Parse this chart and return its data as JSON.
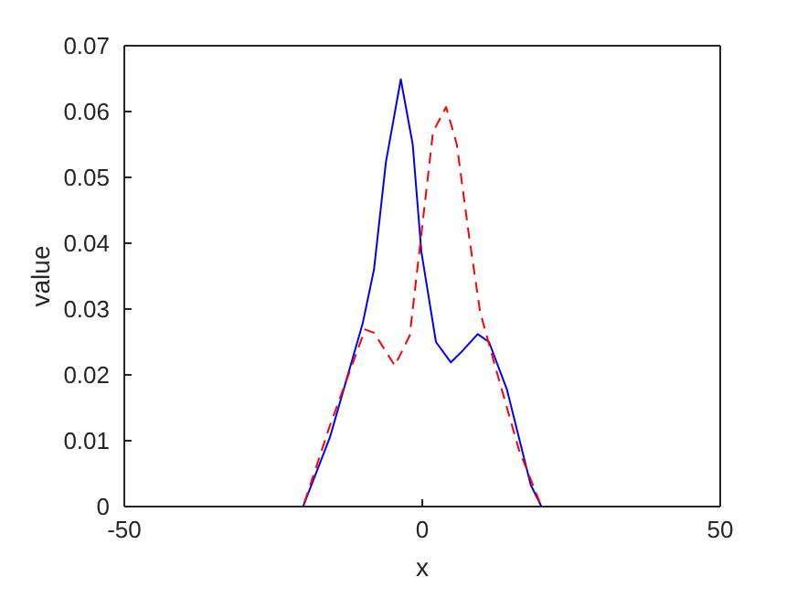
{
  "chart_data": {
    "type": "line",
    "xlabel": "x",
    "ylabel": "value",
    "xlim": [
      -50,
      50
    ],
    "xticks": [
      -50,
      0,
      50
    ],
    "ylim": [
      0,
      0.07
    ],
    "yticks": [
      0,
      0.01,
      0.02,
      0.03,
      0.04,
      0.05,
      0.06,
      0.07
    ],
    "grid": false,
    "marker": "none",
    "series": [
      {
        "color": "#0000ff",
        "line_style": "solid",
        "x": [
          -50,
          -20,
          -15.5,
          -10,
          -8.1,
          -6.1,
          -3.6,
          -1.6,
          -0.15,
          2.3,
          4.8,
          6.8,
          9.3,
          11.2,
          14.2,
          18.2,
          20,
          50
        ],
        "values": [
          0,
          0,
          0.0105,
          0.0278,
          0.036,
          0.0523,
          0.0649,
          0.055,
          0.0387,
          0.025,
          0.0219,
          0.0237,
          0.0262,
          0.025,
          0.0178,
          0.0033,
          0,
          0
        ]
      },
      {
        "color": "#ff0000",
        "line_style": "dashed",
        "x": [
          -50,
          -20,
          -15.5,
          -9.6,
          -8.1,
          -4.6,
          -2.1,
          -0.15,
          1.8,
          4.0,
          5.8,
          7.8,
          9.7,
          12.2,
          16.2,
          20,
          50
        ],
        "values": [
          0,
          0,
          0.0123,
          0.0269,
          0.0264,
          0.0214,
          0.026,
          0.0414,
          0.0569,
          0.0607,
          0.055,
          0.0414,
          0.0296,
          0.0214,
          0.0087,
          0,
          0
        ]
      }
    ]
  }
}
